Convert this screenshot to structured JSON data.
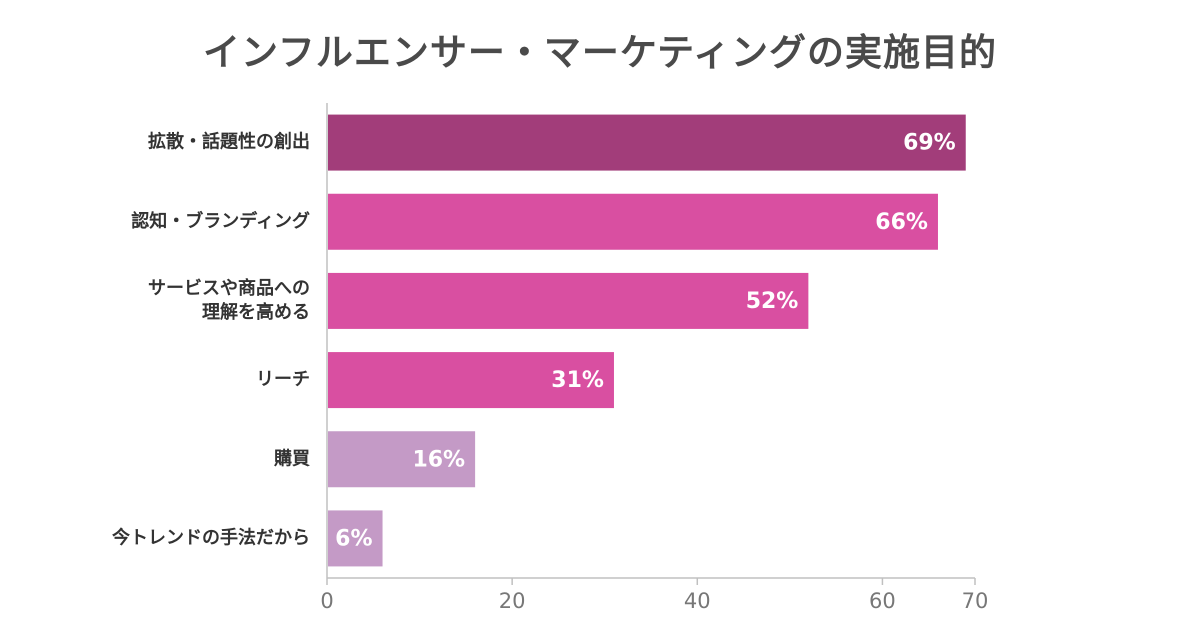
{
  "chart_data": {
    "type": "bar",
    "orientation": "horizontal",
    "title": "インフルエンサー・マーケティングの実施目的",
    "categories": [
      [
        "拡散・話題性の創出"
      ],
      [
        "認知・ブランディング"
      ],
      [
        "サービスや商品への",
        "理解を高める"
      ],
      [
        "リーチ"
      ],
      [
        "購買"
      ],
      [
        "今トレンドの手法だから"
      ]
    ],
    "values": [
      69,
      66,
      52,
      31,
      16,
      6
    ],
    "value_labels": [
      "69%",
      "66%",
      "52%",
      "31%",
      "16%",
      "6%"
    ],
    "bar_colors": [
      "#a23d7a",
      "#d94fa1",
      "#d94fa1",
      "#d94fa1",
      "#c49ac6",
      "#c49ac6"
    ],
    "xlim": [
      0,
      70
    ],
    "xticks": [
      0,
      20,
      40,
      60,
      70
    ],
    "grid": false,
    "xlabel": "",
    "ylabel": ""
  }
}
